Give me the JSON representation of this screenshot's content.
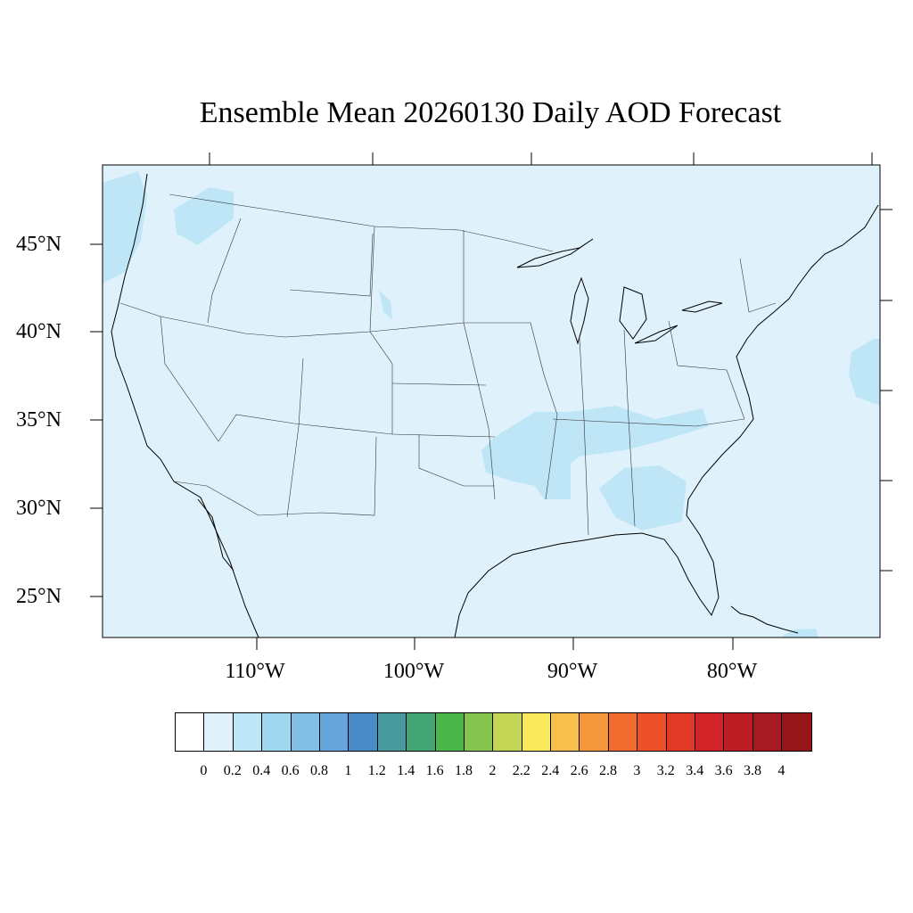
{
  "title": "Ensemble Mean 20260130 Daily AOD Forecast",
  "map": {
    "projection": "lambert-conformal",
    "background_color": "#dff2fb",
    "highlight_color": "#bfe6f7",
    "lat_labels": [
      "45°N",
      "40°N",
      "35°N",
      "30°N",
      "25°N"
    ],
    "lon_labels": [
      "110°W",
      "100°W",
      "90°W",
      "80°W"
    ]
  },
  "colorbar": {
    "labels": [
      "0",
      "0.2",
      "0.4",
      "0.6",
      "0.8",
      "1",
      "1.2",
      "1.4",
      "1.6",
      "1.8",
      "2",
      "2.2",
      "2.4",
      "2.6",
      "2.8",
      "3",
      "3.2",
      "3.4",
      "3.6",
      "3.8",
      "4"
    ],
    "colors": [
      "#ffffff",
      "#dff2fb",
      "#bde6f7",
      "#a0d8f2",
      "#82bfe5",
      "#66a6da",
      "#4a8ac8",
      "#479b9f",
      "#44a574",
      "#4bb64a",
      "#86c34f",
      "#c2d654",
      "#f7e95a",
      "#f7bf4b",
      "#f5973d",
      "#f26b2f",
      "#ee5129",
      "#e03a27",
      "#d12328",
      "#bd1d25",
      "#a81a21",
      "#961519"
    ]
  }
}
